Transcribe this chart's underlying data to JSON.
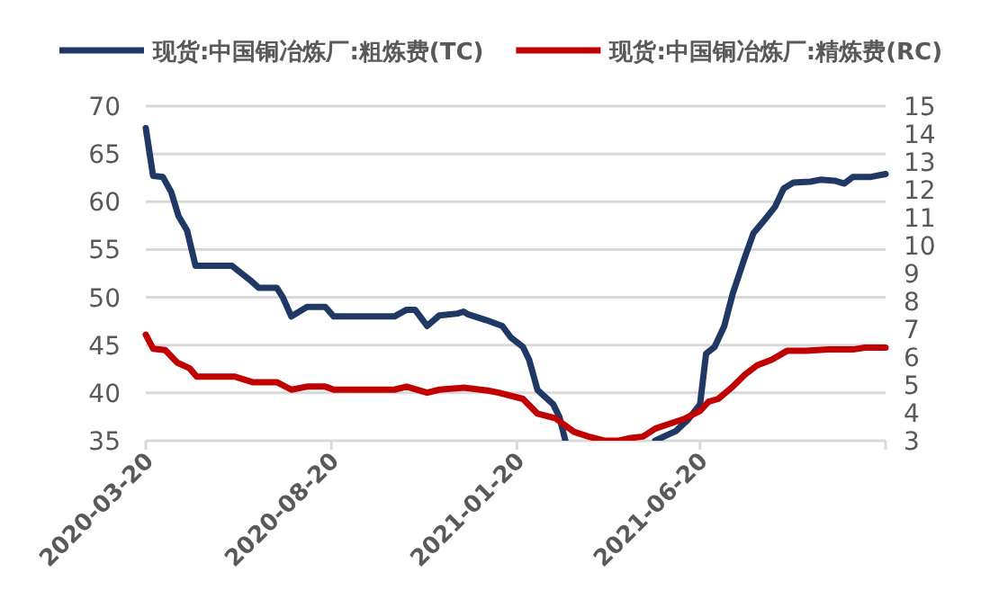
{
  "chart_data": {
    "type": "line",
    "xlim": [
      "2020-03-20",
      "2021-11-20"
    ],
    "xticks": [
      "2020-03-20",
      "2020-08-20",
      "2021-01-20",
      "2021-06-20",
      {
        "value": "2021-11-20",
        "label": null
      }
    ],
    "ylim": [
      35,
      70
    ],
    "yticks": [
      35,
      40,
      45,
      50,
      55,
      60,
      65,
      70
    ],
    "y2lim": [
      3,
      15
    ],
    "y2ticks": [
      3,
      4,
      5,
      6,
      7,
      8,
      9,
      10,
      11,
      12,
      13,
      14,
      15
    ],
    "grid": "y",
    "legend": "top",
    "series": [
      {
        "name": "现货:中国铜冶炼厂:粗炼费(TC)",
        "color": "#1f3864",
        "x": [
          "2020-03-20",
          "2020-03-26",
          "2020-04-03",
          "2020-04-10",
          "2020-04-16",
          "2020-04-23",
          "2020-04-30",
          "2020-05-30",
          "2020-06-14",
          "2020-06-21",
          "2020-07-06",
          "2020-07-11",
          "2020-07-18",
          "2020-07-31",
          "2020-08-15",
          "2020-08-22",
          "2020-10-11",
          "2020-10-21",
          "2020-10-28",
          "2020-11-07",
          "2020-11-17",
          "2020-12-02",
          "2020-12-07",
          "2020-12-11",
          "2020-12-26",
          "2021-01-08",
          "2021-01-15",
          "2021-01-25",
          "2021-01-30",
          "2021-02-06",
          "2021-02-19",
          "2021-02-24",
          "2021-03-01",
          "2021-04-02",
          "2021-05-14",
          "2021-05-24",
          "2021-05-31",
          "2021-06-10",
          "2021-06-20",
          "2021-06-25",
          "2021-07-02",
          "2021-07-10",
          "2021-07-17",
          "2021-07-27",
          "2021-08-03",
          "2021-08-11",
          "2021-08-21",
          "2021-08-28",
          "2021-09-05",
          "2021-09-19",
          "2021-09-27",
          "2021-10-09",
          "2021-10-17",
          "2021-10-24",
          "2021-11-08",
          "2021-11-20"
        ],
        "values": [
          67.7,
          62.7,
          62.6,
          61,
          58.5,
          57,
          53.3,
          53.3,
          51.8,
          51,
          51,
          50,
          48,
          49,
          49,
          48,
          48,
          48.7,
          48.7,
          47,
          48.1,
          48.3,
          48.5,
          48.2,
          47.6,
          47,
          45.8,
          44.8,
          43.5,
          40.3,
          38.8,
          37.5,
          35,
          null,
          35,
          35.6,
          36,
          37.2,
          38.8,
          44.1,
          44.8,
          47,
          50.4,
          54.2,
          56.7,
          57.9,
          59.5,
          61.4,
          62,
          62.1,
          62.3,
          62.2,
          61.9,
          62.6,
          62.6,
          62.9
        ]
      },
      {
        "name": "现货:中国铜冶炼厂:精炼费(RC)",
        "color": "#c00000",
        "axis": "y2",
        "x": [
          "2020-03-20",
          "2020-03-26",
          "2020-04-05",
          "2020-04-15",
          "2020-04-25",
          "2020-05-01",
          "2020-06-01",
          "2020-06-16",
          "2020-07-06",
          "2020-07-18",
          "2020-07-31",
          "2020-08-15",
          "2020-08-22",
          "2020-10-11",
          "2020-10-21",
          "2020-11-07",
          "2020-11-17",
          "2020-12-07",
          "2020-12-27",
          "2021-01-05",
          "2021-01-25",
          "2021-02-06",
          "2021-02-21",
          "2021-03-08",
          "2021-03-20",
          "2021-04-02",
          "2021-04-14",
          "2021-04-24",
          "2021-05-04",
          "2021-05-14",
          "2021-05-24",
          "2021-06-08",
          "2021-06-20",
          "2021-06-27",
          "2021-07-05",
          "2021-07-17",
          "2021-07-27",
          "2021-08-06",
          "2021-08-18",
          "2021-08-31",
          "2021-09-15",
          "2021-10-04",
          "2021-10-24",
          "2021-11-03",
          "2021-11-20"
        ],
        "values": [
          6.8,
          6.3,
          6.25,
          5.8,
          5.6,
          5.3,
          5.3,
          5.1,
          5.1,
          4.83,
          4.94,
          4.94,
          4.83,
          4.83,
          4.94,
          4.72,
          4.83,
          4.9,
          4.8,
          4.72,
          4.5,
          3.97,
          3.8,
          3.32,
          3.15,
          3,
          3,
          3.1,
          3.15,
          3.43,
          3.58,
          3.8,
          4.07,
          4.4,
          4.5,
          4.94,
          5.37,
          5.7,
          5.9,
          6.23,
          6.23,
          6.27,
          6.27,
          6.34,
          6.34
        ]
      }
    ]
  }
}
